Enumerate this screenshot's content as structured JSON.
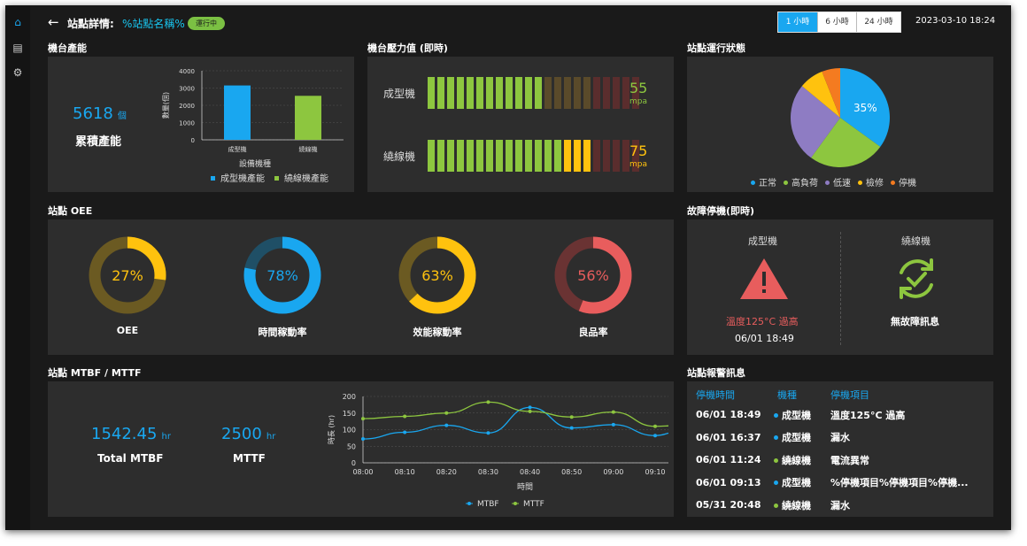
{
  "header": {
    "back_glyph": "←",
    "title": "站點詳情:",
    "station_name": "%站點名稱%",
    "status_badge": "運行中",
    "range_tabs": [
      "1 小時",
      "6 小時",
      "24 小時"
    ],
    "datetime": "2023-03-10 18:24"
  },
  "sidebar": {
    "items": [
      {
        "icon": "home-icon",
        "glyph": "⌂"
      },
      {
        "icon": "message-icon",
        "glyph": "▤"
      },
      {
        "icon": "settings-icon",
        "glyph": "⚙"
      }
    ]
  },
  "capacity": {
    "section_title": "機台產能",
    "total_value": "5618",
    "total_unit": "個",
    "total_label": "累積產能"
  },
  "pressure": {
    "section_title": "機台壓力值 (即時)",
    "rows": [
      {
        "label": "成型機",
        "value": "55",
        "unit": "mpa",
        "level": 0.55,
        "color": "#8dc63f"
      },
      {
        "label": "繞線機",
        "value": "75",
        "unit": "mpa",
        "level": 0.75,
        "color": "#ffc20e"
      }
    ]
  },
  "status": {
    "section_title": "站點運行狀態",
    "center_label": "35%"
  },
  "oee": {
    "section_title": "站點 OEE",
    "gauges": [
      {
        "value": 27,
        "text": "27%",
        "label": "OEE",
        "color": "#ffc20e",
        "track": "#6b5a22"
      },
      {
        "value": 78,
        "text": "78%",
        "label": "時間稼動率",
        "color": "#19a7f0",
        "track": "#1f4f66"
      },
      {
        "value": 63,
        "text": "63%",
        "label": "效能稼動率",
        "color": "#ffc20e",
        "track": "#6b5a22"
      },
      {
        "value": 56,
        "text": "56%",
        "label": "良品率",
        "color": "#e85d5d",
        "track": "#6a3333"
      }
    ]
  },
  "fault": {
    "section_title": "故障停機(即時)",
    "machines": [
      {
        "name": "成型機",
        "message": "溫度125°C 過高",
        "time": "06/01 18:49"
      },
      {
        "name": "繞線機",
        "message": "無故障訊息",
        "time": ""
      }
    ]
  },
  "mtbf": {
    "section_title": "站點 MTBF / MTTF",
    "mtbf_value": "1542.45",
    "mtbf_unit": "hr",
    "mtbf_label": "Total MTBF",
    "mttf_value": "2500",
    "mttf_unit": "hr",
    "mttf_label": "MTTF"
  },
  "alarm": {
    "section_title": "站點報警訊息",
    "headers": [
      "停機時間",
      "機種",
      "停機項目"
    ],
    "rows": [
      {
        "time": "06/01 18:49",
        "machine": "成型機",
        "machine_color": "#19a7f0",
        "item": "溫度125°C 過高"
      },
      {
        "time": "06/01 16:37",
        "machine": "成型機",
        "machine_color": "#19a7f0",
        "item": "漏水"
      },
      {
        "time": "06/01 11:24",
        "machine": "繞線機",
        "machine_color": "#8dc63f",
        "item": "電流異常"
      },
      {
        "time": "06/01 09:13",
        "machine": "成型機",
        "machine_color": "#19a7f0",
        "item": "%停機項目%停機項目%停機..."
      },
      {
        "time": "05/31 20:48",
        "machine": "繞線機",
        "machine_color": "#8dc63f",
        "item": "漏水"
      }
    ]
  },
  "chart_data": [
    {
      "type": "bar",
      "categories": [
        "成型機",
        "繞線機"
      ],
      "series": [
        {
          "name": "成型機產能",
          "values": [
            3150,
            null
          ],
          "color": "#19a7f0"
        },
        {
          "name": "繞線機產能",
          "values": [
            null,
            2550
          ],
          "color": "#8dc63f"
        }
      ],
      "xlabel": "設備機種",
      "ylabel": "數量(個)",
      "ylim": [
        0,
        4000
      ],
      "yticks": [
        0,
        1000,
        2000,
        3000,
        4000
      ],
      "legend": "bottom"
    },
    {
      "type": "pie",
      "labels": [
        "正常",
        "高負荷",
        "低速",
        "檢修",
        "停機"
      ],
      "values": [
        35,
        25,
        26,
        8,
        6
      ],
      "colors": [
        "#19a7f0",
        "#8dc63f",
        "#8e7cc3",
        "#ffc20e",
        "#f47b20"
      ],
      "legend": "bottom"
    },
    {
      "type": "line",
      "x": [
        "08:00",
        "08:10",
        "08:20",
        "08:30",
        "08:40",
        "08:50",
        "09:00",
        "09:10"
      ],
      "series": [
        {
          "name": "MTBF",
          "color": "#19a7f0",
          "points": [
            [
              0,
              72
            ],
            [
              10,
              92
            ],
            [
              20,
              113
            ],
            [
              30,
              90
            ],
            [
              40,
              167
            ],
            [
              50,
              105
            ],
            [
              60,
              115
            ],
            [
              70,
              82
            ],
            [
              75,
              92
            ]
          ]
        },
        {
          "name": "MTTF",
          "color": "#8dc63f",
          "points": [
            [
              0,
              133
            ],
            [
              10,
              140
            ],
            [
              20,
              150
            ],
            [
              30,
              183
            ],
            [
              40,
              155
            ],
            [
              50,
              138
            ],
            [
              60,
              153
            ],
            [
              70,
              110
            ],
            [
              75,
              112
            ]
          ]
        }
      ],
      "xlabel": "時間",
      "ylabel": "時長 (hr)",
      "ylim": [
        0,
        200
      ],
      "yticks": [
        0,
        50,
        100,
        150,
        200
      ],
      "legend": "bottom"
    }
  ]
}
